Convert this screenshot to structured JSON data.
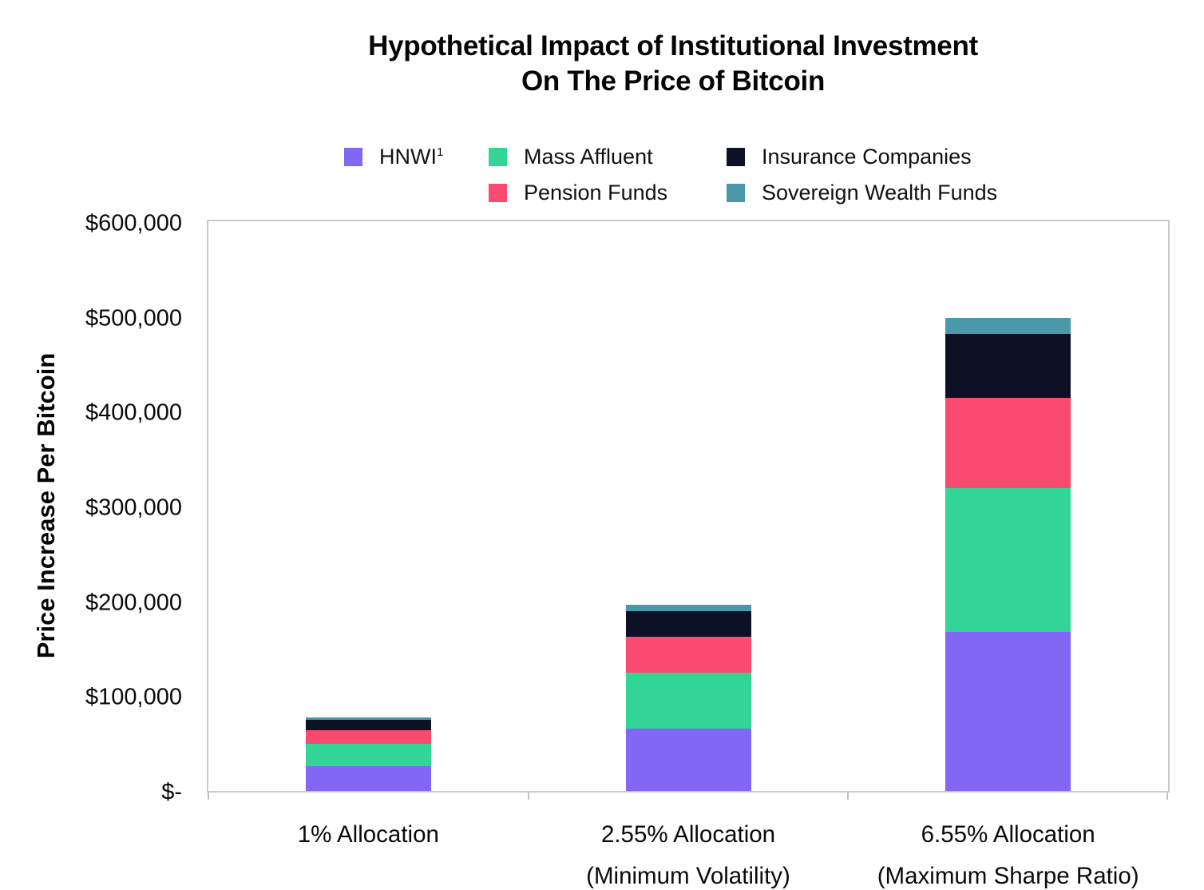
{
  "title": {
    "line1": "Hypothetical Impact of Institutional Investment",
    "line2": "On The Price of Bitcoin"
  },
  "chart_data": {
    "type": "bar",
    "stacked": true,
    "title": "Hypothetical Impact of Institutional Investment On The Price of Bitcoin",
    "ylabel": "Price Increase Per Bitcoin",
    "xlabel": "",
    "ylim": [
      0,
      600000
    ],
    "grid": false,
    "legend_position": "top",
    "categories": [
      "1% Allocation",
      "2.55% Allocation",
      "6.55% Allocation"
    ],
    "category_sublabels": [
      "",
      "(Minimum Volatility)",
      "(Maximum Sharpe Ratio)"
    ],
    "stack_order": "bottom to top: HNWI, Mass Affluent, Pension Funds, Insurance Companies, Sovereign Wealth Funds",
    "series": [
      {
        "name": "HNWI",
        "footnote": "1",
        "color": "#8167F3",
        "values": [
          26000,
          66000,
          168000
        ]
      },
      {
        "name": "Mass Affluent",
        "color": "#32D596",
        "values": [
          23500,
          59000,
          151000
        ]
      },
      {
        "name": "Pension Funds",
        "color": "#FA4A6F",
        "values": [
          14800,
          37500,
          95500
        ]
      },
      {
        "name": "Insurance Companies",
        "color": "#0D1126",
        "values": [
          10700,
          27000,
          67500
        ]
      },
      {
        "name": "Sovereign Wealth Funds",
        "color": "#4A98AA",
        "values": [
          2800,
          6800,
          17000
        ]
      }
    ],
    "stack_totals": [
      77800,
      196300,
      499000
    ],
    "y_ticks": [
      {
        "value": 600000,
        "label": "$600,000"
      },
      {
        "value": 500000,
        "label": "$500,000"
      },
      {
        "value": 400000,
        "label": "$400,000"
      },
      {
        "value": 300000,
        "label": "$300,000"
      },
      {
        "value": 200000,
        "label": "$200,000"
      },
      {
        "value": 100000,
        "label": "$100,000"
      },
      {
        "value": 0,
        "label": "$-"
      }
    ],
    "axis_color": "#C9C9C9"
  }
}
